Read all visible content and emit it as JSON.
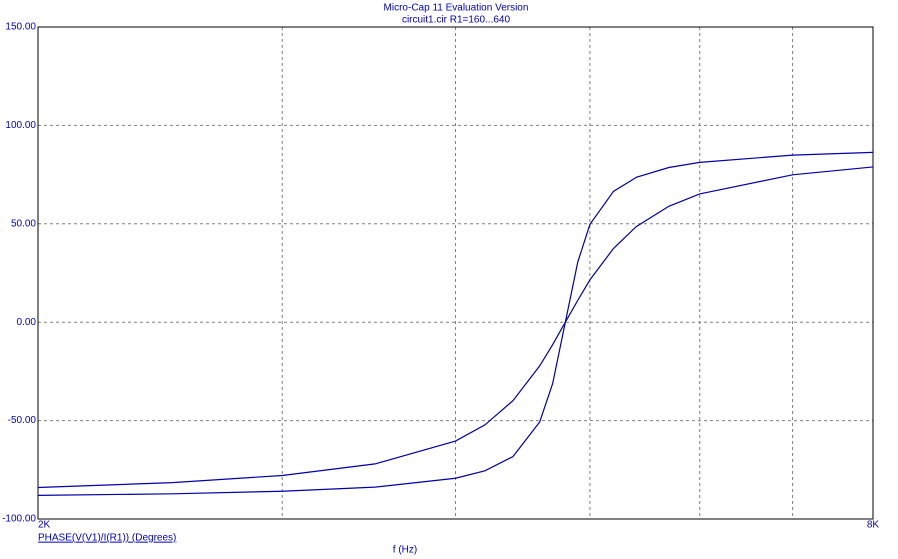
{
  "chart_data": {
    "type": "line",
    "title": "Micro-Cap 11 Evaluation Version",
    "subtitle": "circuit1.cir R1=160...640",
    "x_label": "f (Hz)",
    "y_label": "PHASE(V(V1)/I(R1)) (Degrees)",
    "log_x": true,
    "grid": true,
    "x": [
      2000,
      2500,
      3000,
      3500,
      4000,
      4200,
      4400,
      4600,
      4700,
      4800,
      4900,
      5000,
      5200,
      5400,
      5700,
      6000,
      7000,
      8000
    ],
    "series": [
      {
        "color": "#0000a8",
        "values": [
          -88.0,
          -87.2,
          -85.9,
          -83.8,
          -79.3,
          -75.5,
          -68.3,
          -50.7,
          -31.2,
          0,
          30.5,
          49.7,
          66.5,
          73.6,
          78.6,
          81.2,
          84.9,
          86.3
        ]
      },
      {
        "color": "#0000a8",
        "values": [
          -84.0,
          -81.5,
          -77.9,
          -72.0,
          -60.4,
          -52.2,
          -39.9,
          -22.2,
          -11.4,
          0,
          11.1,
          21.5,
          37.5,
          48.6,
          58.9,
          65.2,
          74.9,
          78.9
        ]
      }
    ],
    "xlim": [
      2000,
      8000
    ],
    "xticks": [
      {
        "value": 2000,
        "label": "2K"
      },
      {
        "value": 8000,
        "label": "8K"
      }
    ],
    "xgrid": [
      3000,
      4000,
      5000,
      6000,
      7000
    ],
    "ylim": [
      -100,
      150
    ],
    "yticks": [
      {
        "value": -100,
        "label": "-100.00"
      },
      {
        "value": -50,
        "label": "-50.00"
      },
      {
        "value": 0,
        "label": "0.00"
      },
      {
        "value": 50,
        "label": "50.00"
      },
      {
        "value": 100,
        "label": "100.00"
      },
      {
        "value": 150,
        "label": "150.00"
      }
    ]
  }
}
